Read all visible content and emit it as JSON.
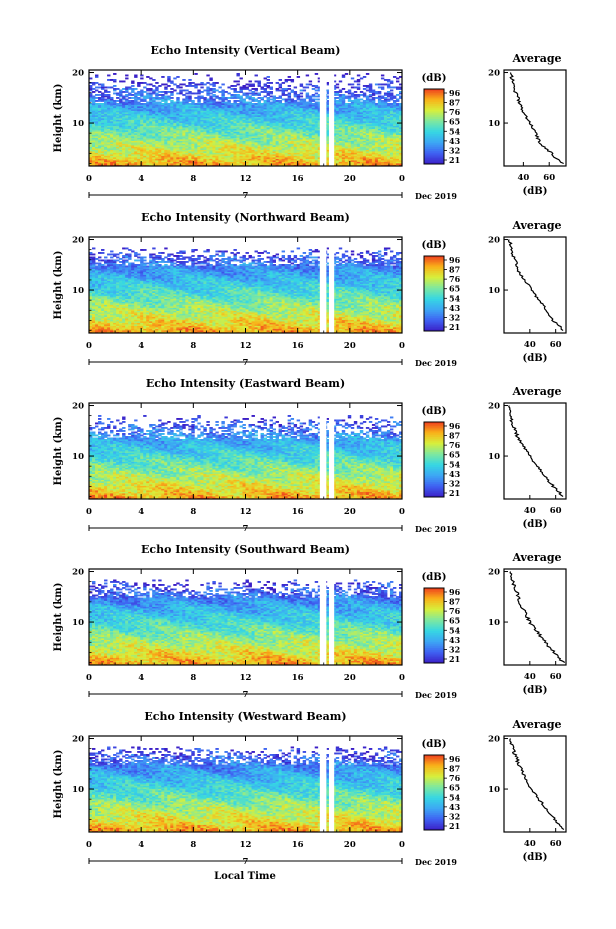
{
  "chart_data": {
    "type": "heatmap",
    "x_label": "Local Time",
    "x_ticks": [
      "0",
      "4",
      "8",
      "12",
      "16",
      "20",
      "0"
    ],
    "x_range": [
      0,
      24
    ],
    "day_label": "7",
    "date_label": "Dec 2019",
    "y_label": "Height (km)",
    "y_ticks": [
      "10",
      "20"
    ],
    "y_range": [
      1.5,
      20.5
    ],
    "colorbar_label": "(dB)",
    "colorbar_ticks": [
      "96",
      "87",
      "76",
      "65",
      "54",
      "43",
      "32",
      "21"
    ],
    "color_scale": [
      "#3b1fc6",
      "#3f62f2",
      "#3da7f4",
      "#36d7e3",
      "#7ee89f",
      "#d7ef3c",
      "#f9b219",
      "#ee3f1e"
    ],
    "avg_title": "Average",
    "avg_xlabel": "(dB)",
    "data_gaps_local_time": [
      [
        17.7,
        18.2
      ],
      [
        18.4,
        18.8
      ]
    ],
    "panels": [
      {
        "title": "Echo Intensity (Vertical Beam)",
        "avg_x_ticks": [
          "40",
          "60"
        ],
        "avg_x_range": [
          25,
          73
        ],
        "clear_above_km": 20,
        "sparse_above_km": 14,
        "profile": [
          [
            2,
            71
          ],
          [
            3,
            65
          ],
          [
            4,
            62
          ],
          [
            5,
            57
          ],
          [
            6,
            53
          ],
          [
            7,
            51
          ],
          [
            8,
            50
          ],
          [
            9,
            47
          ],
          [
            10,
            45
          ],
          [
            11,
            43
          ],
          [
            12,
            40
          ],
          [
            13,
            39
          ],
          [
            14,
            37
          ],
          [
            15,
            36
          ],
          [
            16,
            34
          ],
          [
            17,
            33
          ],
          [
            18,
            32
          ],
          [
            19,
            31
          ],
          [
            20,
            30
          ]
        ]
      },
      {
        "title": "Echo Intensity (Northward Beam)",
        "avg_x_ticks": [
          "40",
          "60"
        ],
        "avg_x_range": [
          20,
          68
        ],
        "clear_above_km": 18.5,
        "sparse_above_km": 15,
        "profile": [
          [
            2,
            66
          ],
          [
            3,
            63
          ],
          [
            4,
            58
          ],
          [
            5,
            55
          ],
          [
            6,
            53
          ],
          [
            7,
            50
          ],
          [
            8,
            47
          ],
          [
            9,
            44
          ],
          [
            10,
            41
          ],
          [
            11,
            39
          ],
          [
            12,
            36
          ],
          [
            13,
            33
          ],
          [
            14,
            31
          ],
          [
            15,
            30
          ],
          [
            16,
            28
          ],
          [
            17,
            27
          ],
          [
            18,
            26
          ],
          [
            19,
            25
          ],
          [
            20,
            24
          ]
        ]
      },
      {
        "title": "Echo Intensity (Eastward Beam)",
        "avg_x_ticks": [
          "40",
          "60"
        ],
        "avg_x_range": [
          20,
          68
        ],
        "clear_above_km": 18,
        "sparse_above_km": 13.5,
        "profile": [
          [
            2,
            66
          ],
          [
            3,
            62
          ],
          [
            4,
            58
          ],
          [
            5,
            55
          ],
          [
            6,
            52
          ],
          [
            7,
            49
          ],
          [
            8,
            46
          ],
          [
            9,
            43
          ],
          [
            10,
            40
          ],
          [
            11,
            38
          ],
          [
            12,
            35
          ],
          [
            13,
            32
          ],
          [
            14,
            30
          ],
          [
            15,
            29
          ],
          [
            16,
            27
          ],
          [
            17,
            26
          ],
          [
            18,
            25
          ],
          [
            19,
            24
          ],
          [
            20,
            24
          ]
        ]
      },
      {
        "title": "Echo Intensity (Southward Beam)",
        "avg_x_ticks": [
          "40",
          "60"
        ],
        "avg_x_range": [
          20,
          68
        ],
        "clear_above_km": 18.5,
        "sparse_above_km": 15,
        "profile": [
          [
            2,
            66
          ],
          [
            3,
            62
          ],
          [
            4,
            59
          ],
          [
            5,
            55
          ],
          [
            6,
            52
          ],
          [
            7,
            49
          ],
          [
            8,
            46
          ],
          [
            9,
            43
          ],
          [
            10,
            40
          ],
          [
            11,
            38
          ],
          [
            12,
            36
          ],
          [
            13,
            34
          ],
          [
            14,
            32
          ],
          [
            15,
            31
          ],
          [
            16,
            30
          ],
          [
            17,
            28
          ],
          [
            18,
            27
          ],
          [
            19,
            26
          ],
          [
            20,
            25
          ]
        ]
      },
      {
        "title": "Echo Intensity (Westward Beam)",
        "avg_x_ticks": [
          "40",
          "60"
        ],
        "avg_x_range": [
          20,
          68
        ],
        "clear_above_km": 18.5,
        "sparse_above_km": 15,
        "profile": [
          [
            2,
            67
          ],
          [
            3,
            63
          ],
          [
            4,
            59
          ],
          [
            5,
            56
          ],
          [
            6,
            53
          ],
          [
            7,
            50
          ],
          [
            8,
            47
          ],
          [
            9,
            44
          ],
          [
            10,
            41
          ],
          [
            11,
            39
          ],
          [
            12,
            37
          ],
          [
            13,
            35
          ],
          [
            14,
            33
          ],
          [
            15,
            31
          ],
          [
            16,
            30
          ],
          [
            17,
            28
          ],
          [
            18,
            27
          ],
          [
            19,
            26
          ],
          [
            20,
            25
          ]
        ]
      }
    ]
  }
}
